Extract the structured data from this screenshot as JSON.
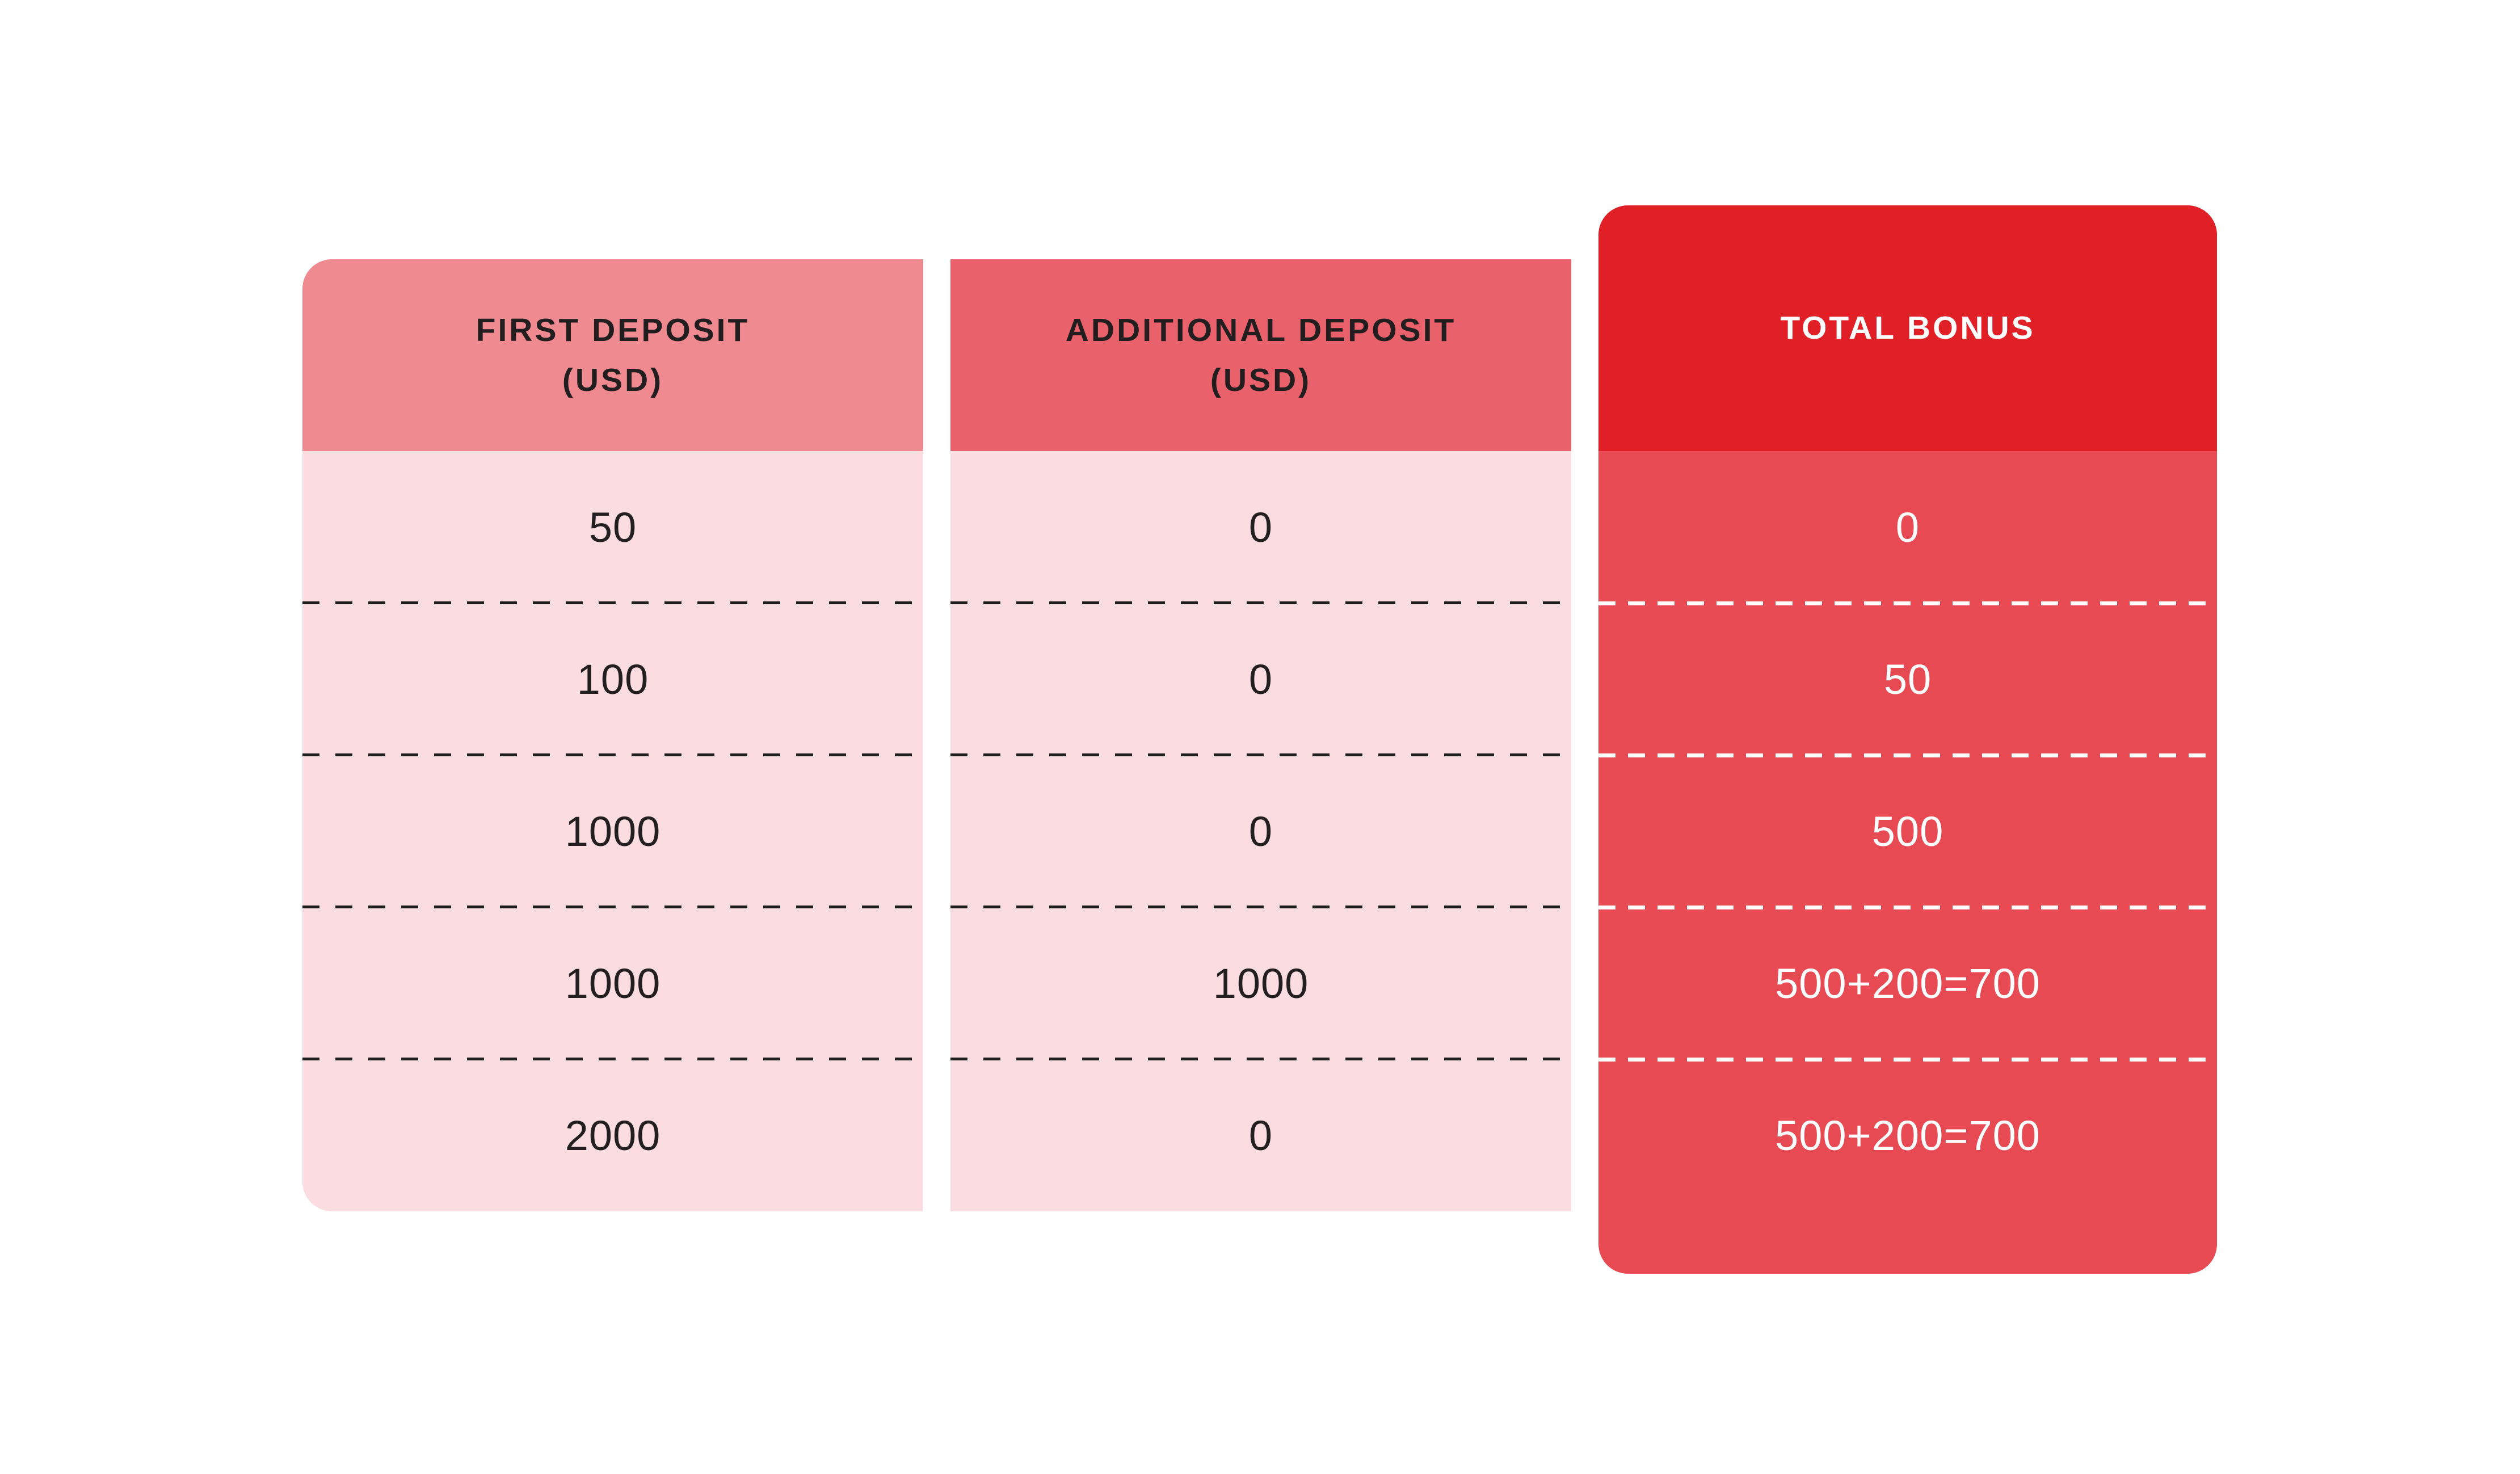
{
  "page": {
    "background": "#ffffff"
  },
  "colors": {
    "col1_header_bg": "#ef8a90",
    "col2_header_bg": "#e9626b",
    "col3_header_bg": "#e01f26",
    "light_row_bg": "#fbdce0",
    "red_row_bg": "#e84a53",
    "dark_text": "#231f20",
    "light_text": "#ffffff",
    "dark_dash": "#1d1d1b",
    "light_dash": "#ffffff"
  },
  "table": {
    "columns": [
      {
        "id": "first-deposit",
        "header_line1": "FIRST DEPOSIT",
        "header_line2": "(USD)",
        "values": [
          "50",
          "100",
          "1000",
          "1000",
          "2000"
        ]
      },
      {
        "id": "additional-deposit",
        "header_line1": "ADDITIONAL DEPOSIT",
        "header_line2": "(USD)",
        "values": [
          "0",
          "0",
          "0",
          "1000",
          "0"
        ]
      },
      {
        "id": "total-bonus",
        "header_line1": "TOTAL BONUS",
        "header_line2": "",
        "values": [
          "0",
          "50",
          "500",
          "500+200=700",
          "500+200=700"
        ]
      }
    ]
  },
  "chart_data": {
    "type": "table",
    "title": "",
    "columns": [
      "FIRST DEPOSIT (USD)",
      "ADDITIONAL DEPOSIT (USD)",
      "TOTAL BONUS"
    ],
    "rows": [
      [
        "50",
        "0",
        "0"
      ],
      [
        "100",
        "0",
        "50"
      ],
      [
        "1000",
        "0",
        "500"
      ],
      [
        "1000",
        "1000",
        "500+200=700"
      ],
      [
        "2000",
        "0",
        "500+200=700"
      ]
    ],
    "layout": {
      "grid": "dashed horizontal separators between rows",
      "legend": "none",
      "notes": "three rounded column cards; first two pink with dark text, third bright red with white text"
    }
  }
}
